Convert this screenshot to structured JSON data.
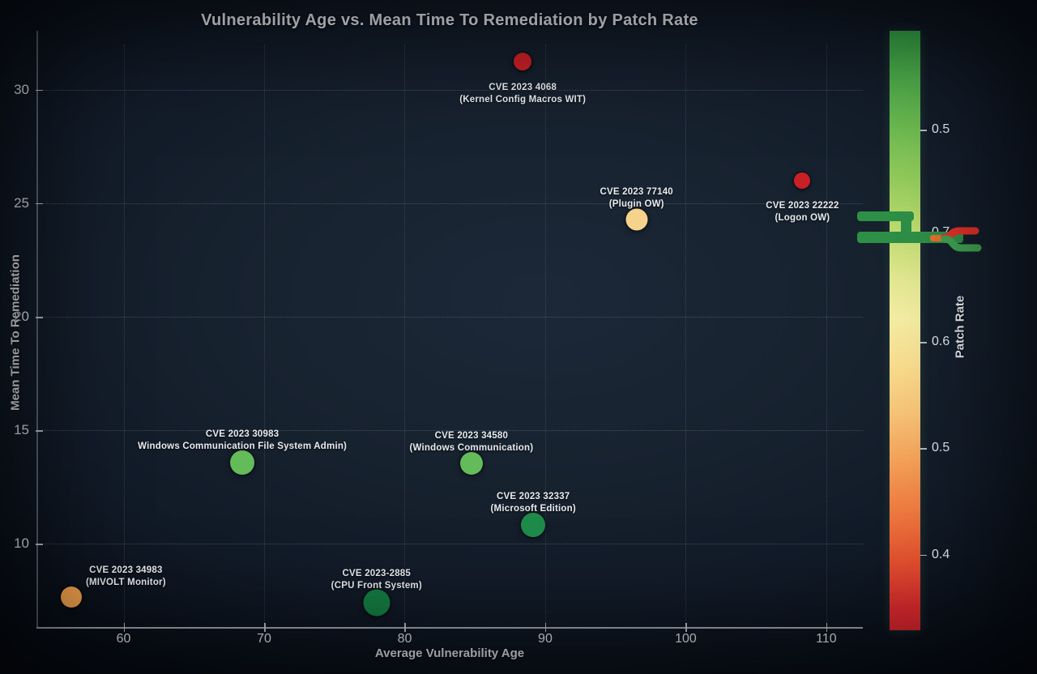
{
  "chart_data": {
    "type": "scatter",
    "title": "Vulnerability Age vs. Mean Time To Remediation by Patch Rate",
    "xlabel": "Average Vulnerability Age",
    "ylabel": "Mean Time To Remediation",
    "xlim": [
      53.8,
      112.6
    ],
    "ylim": [
      6.3,
      32.6
    ],
    "xticks": [
      60,
      70,
      80,
      90,
      100,
      110
    ],
    "yticks": [
      10,
      15,
      20,
      25,
      30
    ],
    "grid": true,
    "legend_position": "none",
    "background_color": "#17222f",
    "text_color": "#e6eaef",
    "points": [
      {
        "x": 88.4,
        "y": 31.25,
        "diameter": 22,
        "color": "#c92026",
        "label_lines": [
          "CVE 2023 4068",
          "(Kernel Config Macros WIT)"
        ],
        "label_placement": "below"
      },
      {
        "x": 96.5,
        "y": 24.3,
        "diameter": 27,
        "color": "#f6d38b",
        "label_lines": [
          "CVE 2023 77140",
          "(Plugin OW)"
        ],
        "label_placement": "above"
      },
      {
        "x": 108.3,
        "y": 26.0,
        "diameter": 20,
        "color": "#c92026",
        "label_lines": [
          "CVE 2023 22222",
          "(Logon OW)"
        ],
        "label_placement": "below"
      },
      {
        "x": 68.45,
        "y": 13.58,
        "diameter": 30,
        "color": "#63bb59",
        "label_lines": [
          "CVE 2023 30983",
          "Windows Communication File System Admin)"
        ],
        "label_placement": "above"
      },
      {
        "x": 84.75,
        "y": 13.54,
        "diameter": 28,
        "color": "#63bb59",
        "label_lines": [
          "CVE 2023 34580",
          "(Windows Communication)"
        ],
        "label_placement": "above"
      },
      {
        "x": 89.15,
        "y": 10.83,
        "diameter": 30,
        "color": "#1f8b4a",
        "label_lines": [
          "CVE 2023 32337",
          "(Microsoft Edition)"
        ],
        "label_placement": "above"
      },
      {
        "x": 56.3,
        "y": 7.65,
        "diameter": 26,
        "color": "#f0a04d",
        "label_lines": [
          "CVE 2023 34983",
          "(MIVOLT Monitor)"
        ],
        "label_placement": "above-right"
      },
      {
        "x": 78.0,
        "y": 7.4,
        "diameter": 33,
        "color": "#147a41",
        "label_lines": [
          "CVE 2023-2885",
          "(CPU Front System)"
        ],
        "label_placement": "above"
      }
    ],
    "colorbar": {
      "label": "Patch Rate",
      "tick_labels": [
        "0.5",
        "0.7",
        "0.6",
        "0.5",
        "0.4"
      ],
      "gradient_stops": [
        "#339e46 0%",
        "#63b54e 14%",
        "#8fc95a 24%",
        "#bcdb6e 33%",
        "#e4e892 42%",
        "#f4eda3 48%",
        "#f8dc8e 56%",
        "#f7c376 64%",
        "#f4a058 72%",
        "#ee7b3f 80%",
        "#e5532f 88%",
        "#d92b2d 96%",
        "#d7242e 100%"
      ],
      "artifact_colors": {
        "green": "#2e8f47",
        "orange": "#e0702f",
        "red": "#df3126",
        "light_green": "#3fa050"
      }
    }
  }
}
